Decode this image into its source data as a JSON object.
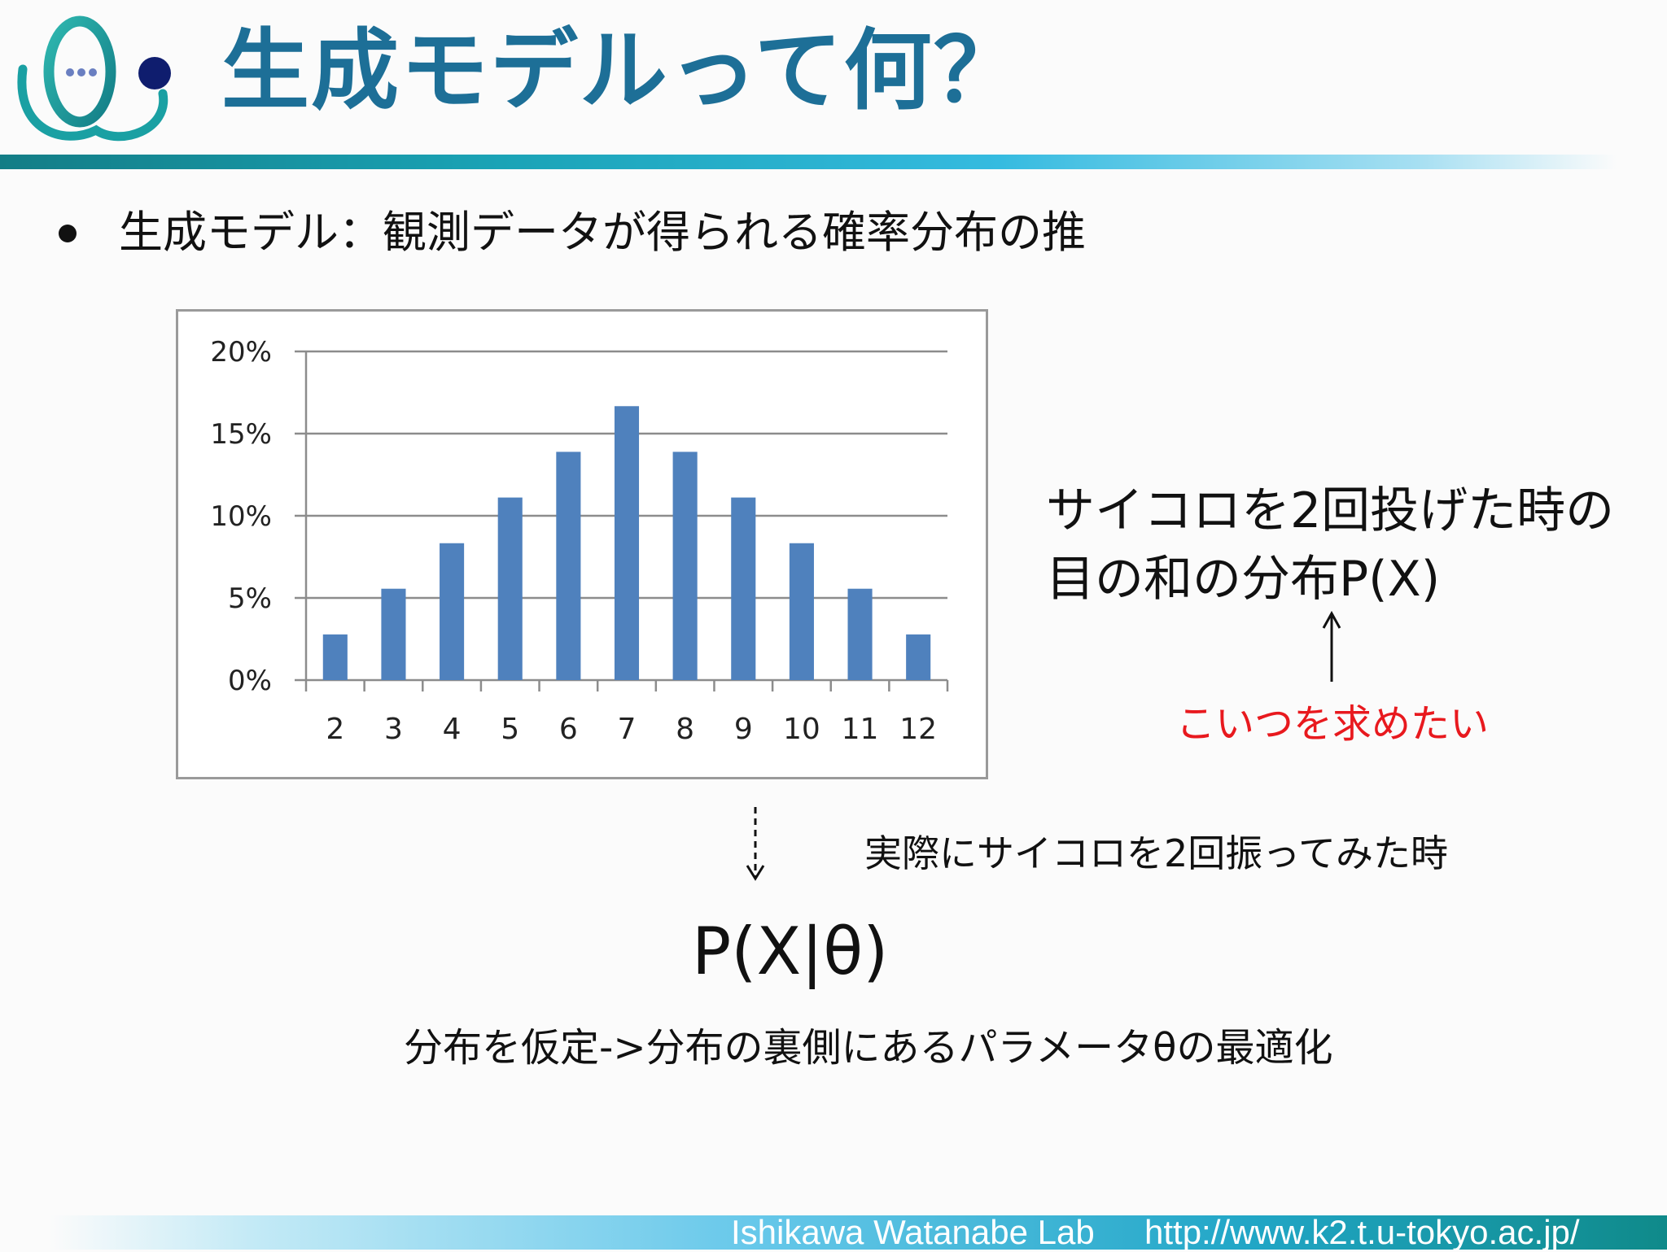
{
  "slide": {
    "title": "生成モデルって何？",
    "bullet": "生成モデル：観測データが得られる確率分布の推",
    "dice_description_line1": "サイコロを2回投げた時の",
    "dice_description_line2": "目の和の分布P(X)",
    "target_note": "こいつを求めたい",
    "actual_roll_note": "実際にサイコロを2回振ってみた時",
    "formula": "P(X|θ)",
    "summary": "分布を仮定->分布の裏側にあるパラメータθの最適化"
  },
  "footer": {
    "lab": "Ishikawa Watanabe Lab",
    "url": "http://www.k2.t.u-tokyo.ac.jp/"
  },
  "colors": {
    "title": "#1d6f97",
    "bar": "#4f81bd",
    "note_red": "#e8191e",
    "grid": "#8c8c8c"
  },
  "chart_data": {
    "type": "bar",
    "categories": [
      "2",
      "3",
      "4",
      "5",
      "6",
      "7",
      "8",
      "9",
      "10",
      "11",
      "12"
    ],
    "values": [
      2.78,
      5.56,
      8.33,
      11.11,
      13.89,
      16.67,
      13.89,
      11.11,
      8.33,
      5.56,
      2.78
    ],
    "ylim": [
      0,
      20
    ],
    "yticks": [
      0,
      5,
      10,
      15,
      20
    ],
    "ytick_labels": [
      "0%",
      "5%",
      "10%",
      "15%",
      "20%"
    ],
    "grid": true,
    "title": "",
    "xlabel": "",
    "ylabel": ""
  }
}
